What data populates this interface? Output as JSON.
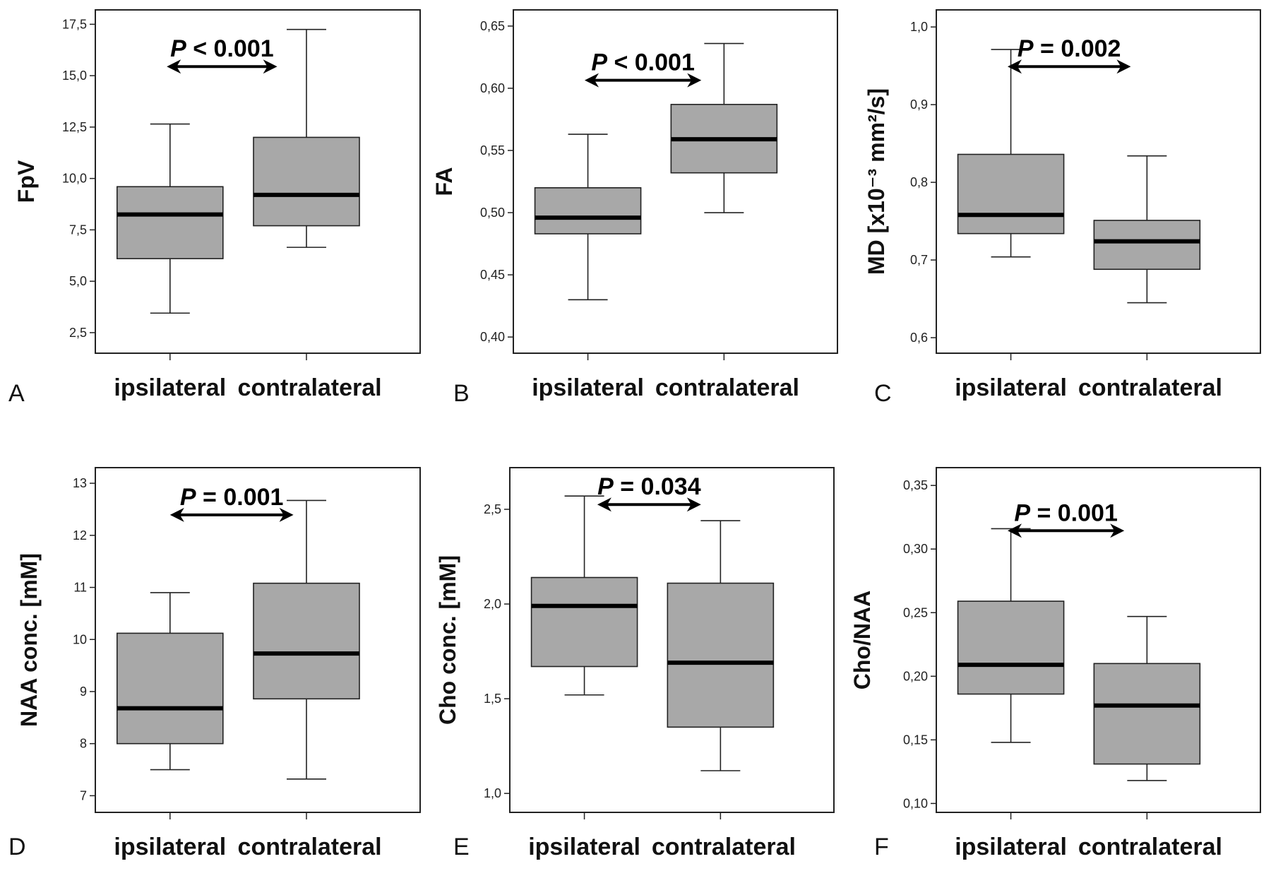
{
  "colors": {
    "box_fill": "#a8a8a8",
    "stroke": "#222222",
    "median": "#000000",
    "background": "#ffffff"
  },
  "chart_data": [
    {
      "panel": "A",
      "type": "boxplot",
      "ylabel": "FpV",
      "ylim": [
        1.5,
        18.2
      ],
      "yticks": [
        2.5,
        5.0,
        7.5,
        10.0,
        12.5,
        15.0,
        17.5
      ],
      "ytick_labels": [
        "2,5",
        "5,0",
        "7,5",
        "10,0",
        "12,5",
        "15,0",
        "17,5"
      ],
      "categories": [
        "ipsilateral",
        "contralateral"
      ],
      "boxes": [
        {
          "min": 3.45,
          "q1": 6.1,
          "median": 8.25,
          "q3": 9.6,
          "max": 12.65
        },
        {
          "min": 6.65,
          "q1": 7.7,
          "median": 9.2,
          "q3": 12.0,
          "max": 17.25
        }
      ],
      "annotation": {
        "p_letter": "P",
        "text": " < 0.001"
      }
    },
    {
      "panel": "B",
      "type": "boxplot",
      "ylabel": "FA",
      "ylim": [
        0.387,
        0.663
      ],
      "yticks": [
        0.4,
        0.45,
        0.5,
        0.55,
        0.6,
        0.65
      ],
      "ytick_labels": [
        "0,40",
        "0,45",
        "0,50",
        "0,55",
        "0,60",
        "0,65"
      ],
      "categories": [
        "ipsilateral",
        "contralateral"
      ],
      "boxes": [
        {
          "min": 0.43,
          "q1": 0.483,
          "median": 0.496,
          "q3": 0.52,
          "max": 0.563
        },
        {
          "min": 0.5,
          "q1": 0.532,
          "median": 0.559,
          "q3": 0.587,
          "max": 0.636
        }
      ],
      "annotation": {
        "p_letter": "P",
        "text": " < 0.001"
      }
    },
    {
      "panel": "C",
      "type": "boxplot",
      "ylabel": "MD [x10⁻³ mm²/s]",
      "ylim": [
        0.58,
        1.022
      ],
      "yticks": [
        0.6,
        0.7,
        0.8,
        0.9,
        1.0
      ],
      "ytick_labels": [
        "0,6",
        "0,7",
        "0,8",
        "0,9",
        "1,0"
      ],
      "categories": [
        "ipsilateral",
        "contralateral"
      ],
      "boxes": [
        {
          "min": 0.704,
          "q1": 0.734,
          "median": 0.758,
          "q3": 0.836,
          "max": 0.971
        },
        {
          "min": 0.645,
          "q1": 0.688,
          "median": 0.724,
          "q3": 0.751,
          "max": 0.834
        }
      ],
      "annotation": {
        "p_letter": "P",
        "text": " = 0.002"
      }
    },
    {
      "panel": "D",
      "type": "boxplot",
      "ylabel": "NAA conc. [mM]",
      "ylim": [
        6.68,
        13.3
      ],
      "yticks": [
        7,
        8,
        9,
        10,
        11,
        12,
        13
      ],
      "ytick_labels": [
        "7",
        "8",
        "9",
        "10",
        "11",
        "12",
        "13"
      ],
      "categories": [
        "ipsilateral",
        "contralateral"
      ],
      "boxes": [
        {
          "min": 7.5,
          "q1": 8.0,
          "median": 8.68,
          "q3": 10.12,
          "max": 10.9
        },
        {
          "min": 7.32,
          "q1": 8.86,
          "median": 9.73,
          "q3": 11.08,
          "max": 12.67
        }
      ],
      "annotation": {
        "p_letter": "P",
        "text": " = 0.001"
      }
    },
    {
      "panel": "E",
      "type": "boxplot",
      "ylabel": "Cho conc. [mM]",
      "ylim": [
        0.9,
        2.72
      ],
      "yticks": [
        1.0,
        1.5,
        2.0,
        2.5
      ],
      "ytick_labels": [
        "1,0",
        "1,5",
        "2,0",
        "2,5"
      ],
      "categories": [
        "ipsilateral",
        "contralateral"
      ],
      "boxes": [
        {
          "min": 1.52,
          "q1": 1.67,
          "median": 1.99,
          "q3": 2.14,
          "max": 2.57
        },
        {
          "min": 1.12,
          "q1": 1.35,
          "median": 1.69,
          "q3": 2.11,
          "max": 2.44
        }
      ],
      "annotation": {
        "p_letter": "P",
        "text": " = 0.034"
      }
    },
    {
      "panel": "F",
      "type": "boxplot",
      "ylabel": "Cho/NAA",
      "ylim": [
        0.093,
        0.364
      ],
      "yticks": [
        0.1,
        0.15,
        0.2,
        0.25,
        0.3,
        0.35
      ],
      "ytick_labels": [
        "0,10",
        "0,15",
        "0,20",
        "0,25",
        "0,30",
        "0,35"
      ],
      "categories": [
        "ipsilateral",
        "contralateral"
      ],
      "boxes": [
        {
          "min": 0.148,
          "q1": 0.186,
          "median": 0.209,
          "q3": 0.259,
          "max": 0.316
        },
        {
          "min": 0.118,
          "q1": 0.131,
          "median": 0.177,
          "q3": 0.21,
          "max": 0.247
        }
      ],
      "annotation": {
        "p_letter": "P",
        "text": " = 0.001"
      }
    }
  ]
}
